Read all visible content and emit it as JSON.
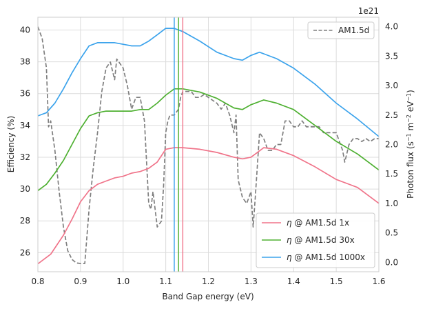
{
  "chart_data": {
    "type": "line",
    "xlabel": "Band Gap energy (eV)",
    "ylabel_left": "Efficiency (%)",
    "ylabel_right_prefix": "Photon flux (s",
    "ylabel_right_mid": " m",
    "ylabel_right_unit": " eV",
    "ylabel_right_suffix": ")",
    "ylabel_right_exp": "−1",
    "ylabel_right_exp2": "−2",
    "right_offset_label": "1e21",
    "xlim": [
      0.8,
      1.6
    ],
    "ylim_left": [
      24.8,
      40.8
    ],
    "ylim_right": [
      -0.16,
      4.16
    ],
    "xticks": [
      "0.8",
      "0.9",
      "1.0",
      "1.1",
      "1.2",
      "1.3",
      "1.4",
      "1.5",
      "1.6"
    ],
    "yticks_left": [
      "26",
      "28",
      "30",
      "32",
      "34",
      "36",
      "38",
      "40"
    ],
    "yticks_right": [
      "0.0",
      "0.5",
      "1.0",
      "1.5",
      "2.0",
      "2.5",
      "3.0",
      "3.5",
      "4.0"
    ],
    "grid": true,
    "legend_main": {
      "placement": "lower-right"
    },
    "legend_flux": {
      "placement": "upper-right"
    },
    "series": [
      {
        "name": "η @ AM1.5d 1x",
        "name_symbol": "η",
        "name_rest": " @ AM1.5d 1x",
        "color": "#f0748a",
        "axis": "left",
        "x": [
          0.8,
          0.83,
          0.86,
          0.88,
          0.9,
          0.92,
          0.94,
          0.96,
          0.98,
          1.0,
          1.02,
          1.04,
          1.06,
          1.08,
          1.1,
          1.12,
          1.14,
          1.18,
          1.22,
          1.26,
          1.28,
          1.3,
          1.32,
          1.33,
          1.36,
          1.4,
          1.45,
          1.5,
          1.55,
          1.6
        ],
        "y": [
          25.3,
          25.9,
          27.1,
          28.1,
          29.2,
          29.9,
          30.3,
          30.5,
          30.7,
          30.8,
          31.0,
          31.1,
          31.3,
          31.7,
          32.5,
          32.6,
          32.6,
          32.5,
          32.3,
          32.0,
          31.9,
          32.0,
          32.4,
          32.6,
          32.5,
          32.1,
          31.4,
          30.6,
          30.1,
          29.1
        ]
      },
      {
        "name": "η @ AM1.5d 30x",
        "name_symbol": "η",
        "name_rest": " @ AM1.5d 30x",
        "color": "#4eb031",
        "axis": "left",
        "x": [
          0.8,
          0.82,
          0.84,
          0.86,
          0.88,
          0.9,
          0.92,
          0.94,
          0.96,
          0.98,
          1.0,
          1.02,
          1.04,
          1.06,
          1.08,
          1.1,
          1.12,
          1.14,
          1.18,
          1.22,
          1.26,
          1.28,
          1.3,
          1.32,
          1.33,
          1.36,
          1.4,
          1.45,
          1.5,
          1.55,
          1.6
        ],
        "y": [
          29.9,
          30.3,
          31.0,
          31.8,
          32.8,
          33.8,
          34.6,
          34.8,
          34.9,
          34.9,
          34.9,
          34.9,
          35.0,
          35.0,
          35.4,
          35.9,
          36.3,
          36.3,
          36.1,
          35.7,
          35.1,
          35.0,
          35.3,
          35.5,
          35.6,
          35.4,
          35.0,
          34.0,
          33.0,
          32.2,
          31.2
        ]
      },
      {
        "name": "η @ AM1.5d 1000x",
        "name_symbol": "η",
        "name_rest": " @ AM1.5d 1000x",
        "color": "#3ba3ec",
        "axis": "left",
        "x": [
          0.8,
          0.82,
          0.84,
          0.86,
          0.88,
          0.9,
          0.92,
          0.94,
          0.96,
          0.98,
          1.0,
          1.02,
          1.04,
          1.06,
          1.08,
          1.1,
          1.12,
          1.14,
          1.18,
          1.22,
          1.26,
          1.28,
          1.3,
          1.32,
          1.33,
          1.36,
          1.4,
          1.45,
          1.5,
          1.55,
          1.6
        ],
        "y": [
          34.6,
          34.8,
          35.4,
          36.3,
          37.3,
          38.2,
          39.0,
          39.2,
          39.2,
          39.2,
          39.1,
          39.0,
          39.0,
          39.3,
          39.7,
          40.1,
          40.1,
          39.9,
          39.3,
          38.6,
          38.2,
          38.1,
          38.4,
          38.6,
          38.5,
          38.2,
          37.6,
          36.6,
          35.4,
          34.4,
          33.3
        ]
      },
      {
        "name": "AM1.5d",
        "color": "#7f7f7f",
        "axis": "right",
        "dashed": true,
        "x": [
          0.8,
          0.81,
          0.82,
          0.825,
          0.83,
          0.84,
          0.85,
          0.86,
          0.87,
          0.88,
          0.89,
          0.9,
          0.91,
          0.92,
          0.93,
          0.94,
          0.95,
          0.96,
          0.97,
          0.98,
          0.985,
          0.99,
          1.0,
          1.01,
          1.02,
          1.03,
          1.04,
          1.05,
          1.06,
          1.065,
          1.07,
          1.08,
          1.09,
          1.095,
          1.1,
          1.105,
          1.11,
          1.12,
          1.13,
          1.135,
          1.14,
          1.15,
          1.16,
          1.17,
          1.18,
          1.19,
          1.2,
          1.21,
          1.22,
          1.23,
          1.24,
          1.25,
          1.26,
          1.265,
          1.27,
          1.28,
          1.29,
          1.3,
          1.305,
          1.31,
          1.32,
          1.33,
          1.34,
          1.35,
          1.36,
          1.37,
          1.38,
          1.39,
          1.4,
          1.41,
          1.42,
          1.43,
          1.44,
          1.45,
          1.46,
          1.47,
          1.48,
          1.49,
          1.5,
          1.51,
          1.515,
          1.52,
          1.53,
          1.54,
          1.55,
          1.56,
          1.57,
          1.58,
          1.59,
          1.6
        ],
        "y": [
          4.0,
          3.8,
          3.3,
          2.3,
          2.4,
          1.9,
          1.2,
          0.6,
          0.2,
          0.05,
          -0.01,
          -0.02,
          -0.02,
          0.9,
          1.6,
          2.2,
          2.9,
          3.3,
          3.4,
          3.1,
          3.45,
          3.4,
          3.3,
          3.0,
          2.6,
          2.8,
          2.8,
          2.4,
          1.0,
          0.9,
          1.2,
          0.6,
          0.7,
          1.3,
          2.2,
          2.4,
          2.5,
          2.5,
          2.6,
          2.8,
          2.9,
          2.9,
          2.9,
          2.8,
          2.8,
          2.85,
          2.8,
          2.75,
          2.7,
          2.6,
          2.7,
          2.5,
          2.2,
          2.5,
          1.4,
          1.1,
          1.0,
          1.2,
          0.6,
          1.1,
          2.2,
          2.1,
          1.9,
          1.9,
          2.0,
          2.0,
          2.4,
          2.4,
          2.3,
          2.3,
          2.4,
          2.3,
          2.3,
          2.3,
          2.3,
          2.2,
          2.2,
          2.2,
          2.2,
          2.0,
          1.9,
          1.7,
          2.0,
          2.1,
          2.1,
          2.05,
          2.1,
          2.05,
          2.1,
          2.1
        ]
      }
    ],
    "vlines": [
      {
        "x": 1.12,
        "color": "#3ba3ec"
      },
      {
        "x": 1.13,
        "color": "#4eb031"
      },
      {
        "x": 1.14,
        "color": "#f0748a"
      }
    ]
  }
}
